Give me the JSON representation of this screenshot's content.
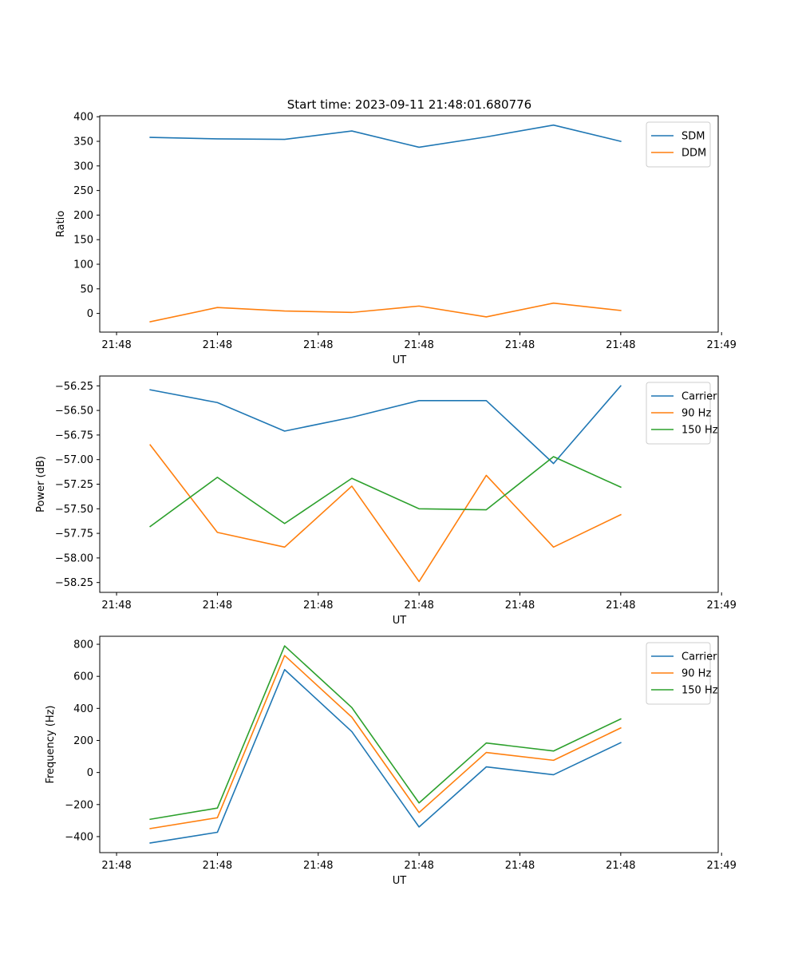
{
  "figure": {
    "suptitle": "Start time: 2023-09-11 21:48:01.680776"
  },
  "chart_data": [
    {
      "type": "line",
      "title": "Start time: 2023-09-11 21:48:01.680776",
      "xlabel": "UT",
      "ylabel": "Ratio",
      "x_points": [
        0,
        1,
        2,
        3,
        4,
        5,
        6,
        7
      ],
      "x_range": [
        -0.75,
        8.45
      ],
      "x_tick_positions": [
        -0.5,
        1.0,
        2.5,
        4.0,
        5.5,
        7.0,
        8.5
      ],
      "x_tick_labels": [
        "21:48",
        "21:48",
        "21:48",
        "21:48",
        "21:48",
        "21:48",
        "21:49"
      ],
      "ylim": [
        -38,
        402
      ],
      "y_ticks": [
        0,
        50,
        100,
        150,
        200,
        250,
        300,
        350,
        400
      ],
      "y_tick_labels": [
        "0",
        "50",
        "100",
        "150",
        "200",
        "250",
        "300",
        "350",
        "400"
      ],
      "legend_position": "upper-right",
      "series": [
        {
          "name": "SDM",
          "color": "#1f77b4",
          "values": [
            358,
            355,
            354,
            371,
            338,
            359,
            383,
            350
          ]
        },
        {
          "name": "DDM",
          "color": "#ff7f0e",
          "values": [
            -17,
            12,
            5,
            2,
            15,
            -7,
            21,
            6
          ]
        }
      ]
    },
    {
      "type": "line",
      "title": "",
      "xlabel": "UT",
      "ylabel": "Power (dB)",
      "x_points": [
        0,
        1,
        2,
        3,
        4,
        5,
        6,
        7
      ],
      "x_range": [
        -0.75,
        8.45
      ],
      "x_tick_positions": [
        -0.5,
        1.0,
        2.5,
        4.0,
        5.5,
        7.0,
        8.5
      ],
      "x_tick_labels": [
        "21:48",
        "21:48",
        "21:48",
        "21:48",
        "21:48",
        "21:48",
        "21:49"
      ],
      "ylim": [
        -58.35,
        -56.15
      ],
      "y_ticks": [
        -58.25,
        -58.0,
        -57.75,
        -57.5,
        -57.25,
        -57.0,
        -56.75,
        -56.5,
        -56.25
      ],
      "y_tick_labels": [
        "−58.25",
        "−58.00",
        "−57.75",
        "−57.50",
        "−57.25",
        "−57.00",
        "−56.75",
        "−56.50",
        "−56.25"
      ],
      "legend_position": "upper-right",
      "series": [
        {
          "name": "Carrier",
          "color": "#1f77b4",
          "values": [
            -56.29,
            -56.42,
            -56.71,
            -56.57,
            -56.4,
            -56.4,
            -57.04,
            -56.25
          ]
        },
        {
          "name": "90 Hz",
          "color": "#ff7f0e",
          "values": [
            -56.85,
            -57.74,
            -57.89,
            -57.27,
            -58.24,
            -57.16,
            -57.89,
            -57.56
          ]
        },
        {
          "name": "150 Hz",
          "color": "#2ca02c",
          "values": [
            -57.68,
            -57.18,
            -57.65,
            -57.19,
            -57.5,
            -57.51,
            -56.97,
            -57.28
          ]
        }
      ]
    },
    {
      "type": "line",
      "title": "",
      "xlabel": "UT",
      "ylabel": "Frequency (Hz)",
      "x_points": [
        0,
        1,
        2,
        3,
        4,
        5,
        6,
        7
      ],
      "x_range": [
        -0.75,
        8.45
      ],
      "x_tick_positions": [
        -0.5,
        1.0,
        2.5,
        4.0,
        5.5,
        7.0,
        8.5
      ],
      "x_tick_labels": [
        "21:48",
        "21:48",
        "21:48",
        "21:48",
        "21:48",
        "21:48",
        "21:49"
      ],
      "ylim": [
        -500,
        850
      ],
      "y_ticks": [
        -400,
        -200,
        0,
        200,
        400,
        600,
        800
      ],
      "y_tick_labels": [
        "−400",
        "−200",
        "0",
        "200",
        "400",
        "600",
        "800"
      ],
      "legend_position": "upper-right",
      "series": [
        {
          "name": "Carrier",
          "color": "#1f77b4",
          "values": [
            -440,
            -373,
            642,
            255,
            -340,
            35,
            -14,
            186
          ]
        },
        {
          "name": "90 Hz",
          "color": "#ff7f0e",
          "values": [
            -350,
            -282,
            730,
            345,
            -250,
            125,
            76,
            278
          ]
        },
        {
          "name": "150 Hz",
          "color": "#2ca02c",
          "values": [
            -292,
            -222,
            790,
            405,
            -190,
            184,
            134,
            334
          ]
        }
      ]
    }
  ]
}
